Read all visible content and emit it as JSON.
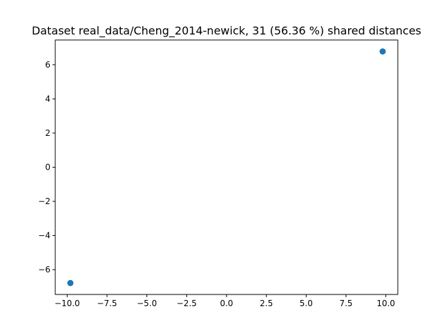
{
  "chart_data": {
    "type": "scatter",
    "title": "Dataset real_data/Cheng_2014-newick, 31 (56.36 %) shared distances",
    "xlabel": "",
    "ylabel": "",
    "xlim": [
      -10.75,
      10.75
    ],
    "ylim": [
      -7.45,
      7.45
    ],
    "grid": false,
    "x_ticks": [
      -10.0,
      -7.5,
      -5.0,
      -2.5,
      0.0,
      2.5,
      5.0,
      7.5,
      10.0
    ],
    "x_tick_labels": [
      "−10.0",
      "−7.5",
      "−5.0",
      "−2.5",
      "0.0",
      "2.5",
      "5.0",
      "7.5",
      "10.0"
    ],
    "y_ticks": [
      -6,
      -4,
      -2,
      0,
      2,
      4,
      6
    ],
    "y_tick_labels": [
      "−6",
      "−4",
      "−2",
      "0",
      "2",
      "4",
      "6"
    ],
    "series": [
      {
        "color": "#1f77b4",
        "points": [
          {
            "x": -9.8,
            "y": -6.78
          },
          {
            "x": 9.8,
            "y": 6.78
          }
        ]
      }
    ]
  }
}
